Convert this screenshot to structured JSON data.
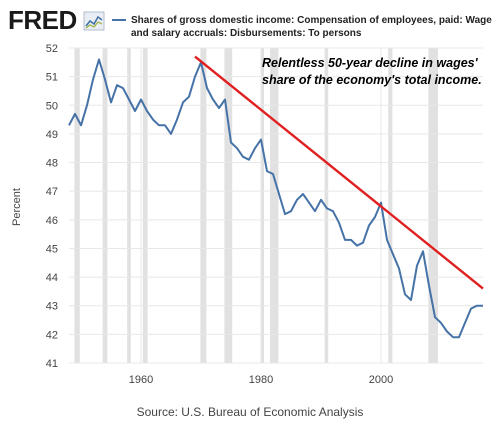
{
  "header": {
    "logo": "FRED",
    "legend_line1": "Shares of gross domestic income: Compensation of employees, paid: Wage",
    "legend_line2": "and salary accruals: Disbursements: To persons"
  },
  "annotation": {
    "line1": "Relentless 50-year decline in wages'",
    "line2": "share of the economy's total income."
  },
  "footer": {
    "source": "Source: U.S. Bureau of Economic Analysis"
  },
  "colors": {
    "series": "#4572a7",
    "trend": "#e02020",
    "recession": "#e1e1e1",
    "grid": "#e8e8e8",
    "logo": "#1a1a1a"
  },
  "chart_data": {
    "type": "line",
    "ylabel": "Percent",
    "xlabel": "",
    "xlim": [
      1948,
      2017
    ],
    "ylim": [
      41,
      52
    ],
    "x_ticks": [
      1960,
      1980,
      2000
    ],
    "y_ticks": [
      41,
      42,
      43,
      44,
      45,
      46,
      47,
      48,
      49,
      50,
      51,
      52
    ],
    "grid": true,
    "recessions": [
      [
        1948.9,
        1949.8
      ],
      [
        1953.6,
        1954.4
      ],
      [
        1957.7,
        1958.3
      ],
      [
        1960.3,
        1961.1
      ],
      [
        1969.9,
        1970.9
      ],
      [
        1973.9,
        1975.2
      ],
      [
        1980.0,
        1980.5
      ],
      [
        1981.5,
        1982.9
      ],
      [
        1990.6,
        1991.2
      ],
      [
        2001.2,
        2001.9
      ],
      [
        2007.9,
        2009.5
      ]
    ],
    "series": [
      {
        "x": [
          1948,
          1949,
          1950,
          1951,
          1952,
          1953,
          1954,
          1955,
          1956,
          1957,
          1958,
          1959,
          1960,
          1961,
          1962,
          1963,
          1964,
          1965,
          1966,
          1967,
          1968,
          1969,
          1970,
          1971,
          1972,
          1973,
          1974,
          1975,
          1976,
          1977,
          1978,
          1979,
          1980,
          1981,
          1982,
          1983,
          1984,
          1985,
          1986,
          1987,
          1988,
          1989,
          1990,
          1991,
          1992,
          1993,
          1994,
          1995,
          1996,
          1997,
          1998,
          1999,
          2000,
          2001,
          2002,
          2003,
          2004,
          2005,
          2006,
          2007,
          2008,
          2009,
          2010,
          2011,
          2012,
          2013,
          2014,
          2015,
          2016,
          2017
        ],
        "values": [
          49.3,
          49.7,
          49.3,
          50.0,
          50.9,
          51.6,
          50.9,
          50.1,
          50.7,
          50.6,
          50.2,
          49.8,
          50.2,
          49.8,
          49.5,
          49.3,
          49.3,
          49.0,
          49.5,
          50.1,
          50.3,
          51.0,
          51.5,
          50.6,
          50.2,
          49.9,
          50.2,
          48.7,
          48.5,
          48.2,
          48.1,
          48.5,
          48.8,
          47.7,
          47.6,
          46.9,
          46.2,
          46.3,
          46.7,
          46.9,
          46.6,
          46.3,
          46.7,
          46.4,
          46.3,
          45.9,
          45.3,
          45.3,
          45.1,
          45.2,
          45.8,
          46.1,
          46.6,
          45.3,
          44.8,
          44.3,
          43.4,
          43.2,
          44.4,
          44.9,
          43.7,
          42.6,
          42.4,
          42.1,
          41.9,
          41.9,
          42.4,
          42.9,
          43.0,
          43.0
        ]
      }
    ],
    "trendline": {
      "x": [
        1969,
        2017
      ],
      "values": [
        51.7,
        43.6
      ]
    }
  }
}
